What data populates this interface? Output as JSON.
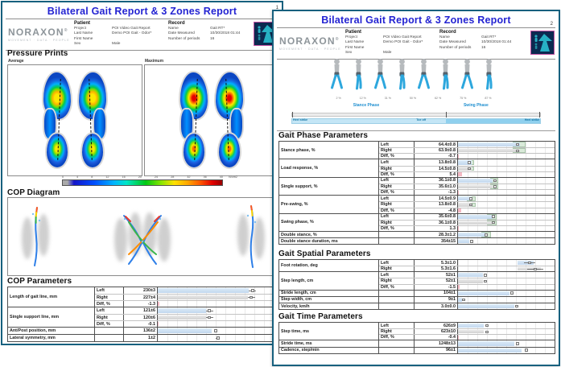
{
  "report": {
    "title": "Bilateral Gait Report & 3 Zones Report"
  },
  "header": {
    "logo_text": "NORAXON",
    "logo_tagline": "MOVEMENT · DATA · PEOPLE",
    "patient_title": "Patient",
    "patient_rows": [
      [
        "Project",
        "POI Video Gait Report"
      ],
      [
        "Last Name",
        "Demo POI Gait - Odor*"
      ],
      [
        "First Name",
        ""
      ],
      [
        "Sex",
        "Male"
      ]
    ],
    "record_title": "Record",
    "record_rows": [
      [
        "Name",
        "Gait RT*"
      ],
      [
        "Date Measured",
        "10/30/2018 01:44"
      ],
      [
        "Number of periods",
        "16"
      ]
    ]
  },
  "page1": {
    "number": "1",
    "pressure": {
      "title": "Pressure Prints",
      "left_label": "Average",
      "right_label": "Maximum",
      "scale_ticks": [
        "0",
        "4",
        "8",
        "12",
        "16",
        "20",
        "24",
        "28",
        "32",
        "36",
        "40"
      ],
      "scale_unit": "N/cm2"
    },
    "cop_diagram_title": "COP Diagram",
    "cop_table": {
      "title": "COP Parameters",
      "groups": [
        {
          "label": "Length of gait line, mm",
          "rows": [
            {
              "side": "Left",
              "value": "230±3",
              "bar": {
                "w": 76,
                "c": "L",
                "m": 79,
                "wh": 3
              }
            },
            {
              "side": "Right",
              "value": "227±4",
              "bar": {
                "w": 75,
                "c": "R",
                "m": 78,
                "wh": 3
              }
            },
            {
              "side": "Diff, %",
              "value": "-1.3",
              "bar": {
                "w": 1.5,
                "c": "D"
              }
            }
          ]
        },
        {
          "label": "Single support line, mm",
          "rows": [
            {
              "side": "Left",
              "value": "121±6",
              "bar": {
                "w": 40,
                "c": "L",
                "m": 43,
                "wh": 3
              }
            },
            {
              "side": "Right",
              "value": "120±6",
              "bar": {
                "w": 40,
                "c": "R",
                "m": 43,
                "wh": 3
              }
            },
            {
              "side": "Diff, %",
              "value": "-0.1",
              "bar": {
                "w": 0.8,
                "c": "D"
              }
            }
          ]
        },
        {
          "label": "Ant/Post position, mm",
          "rows": [
            {
              "side": "",
              "value": "136±2",
              "bar": {
                "w": 45,
                "c": "L",
                "m": 48
              }
            }
          ]
        },
        {
          "label": "Lateral symmetry, mm",
          "rows": [
            {
              "side": "",
              "value": "1±2",
              "bar": {
                "w": 0,
                "c": "N",
                "m": 50,
                "wh": 2
              }
            }
          ]
        }
      ]
    }
  },
  "page2": {
    "number": "2",
    "gait_cycle": {
      "phase_ticks": [
        "2 %",
        "12 %",
        "31 %",
        "50 %",
        "62 %",
        "75 %",
        "87 %"
      ],
      "stance_label": "Stance Phase",
      "swing_label": "Swing Phase",
      "events": [
        "Heel strike",
        "Toe off",
        "Heel strike"
      ]
    },
    "phase_table": {
      "title": "Gait Phase Parameters",
      "groups": [
        {
          "label": "Stance phase, %",
          "rows": [
            {
              "side": "Left",
              "value": "64.4±0.8",
              "bar": {
                "w": 64,
                "c": "L",
                "r": [
                  57,
                  70
                ],
                "m": 62
              }
            },
            {
              "side": "Right",
              "value": "63.9±0.8",
              "bar": {
                "w": 64,
                "c": "R",
                "r": [
                  57,
                  70
                ],
                "m": 62
              }
            },
            {
              "side": "Diff, %",
              "value": "-0.7",
              "bar": {
                "w": 1,
                "c": "D"
              }
            }
          ]
        },
        {
          "label": "Load response, %",
          "rows": [
            {
              "side": "Left",
              "value": "13.8±0.8",
              "bar": {
                "w": 14,
                "c": "L",
                "r": [
                  8,
                  17
                ],
                "m": 12
              }
            },
            {
              "side": "Right",
              "value": "14.5±0.8",
              "bar": {
                "w": 14.5,
                "c": "R",
                "r": [
                  8,
                  17
                ],
                "m": 12
              }
            },
            {
              "side": "Diff, %",
              "value": "5.4",
              "bar": {
                "w": 4,
                "c": "D"
              }
            }
          ]
        },
        {
          "label": "Single support, %",
          "rows": [
            {
              "side": "Left",
              "value": "36.1±0.8",
              "bar": {
                "w": 36,
                "c": "L",
                "r": [
                  33,
                  42
                ],
                "m": 38
              }
            },
            {
              "side": "Right",
              "value": "35.6±1.0",
              "bar": {
                "w": 36,
                "c": "R",
                "r": [
                  33,
                  42
                ],
                "m": 38
              }
            },
            {
              "side": "Diff, %",
              "value": "-1.3",
              "bar": {
                "w": 1.2,
                "c": "D"
              }
            }
          ]
        },
        {
          "label": "Pre-swing, %",
          "rows": [
            {
              "side": "Left",
              "value": "14.5±0.9",
              "bar": {
                "w": 14.5,
                "c": "L",
                "r": [
                  9,
                  18
                ],
                "m": 13
              }
            },
            {
              "side": "Right",
              "value": "13.8±0.8",
              "bar": {
                "w": 14,
                "c": "R",
                "r": [
                  9,
                  18
                ],
                "m": 13
              }
            },
            {
              "side": "Diff, %",
              "value": "-4.8",
              "bar": {
                "w": 3.5,
                "c": "D"
              }
            }
          ]
        },
        {
          "label": "Swing phase, %",
          "rows": [
            {
              "side": "Left",
              "value": "35.6±0.8",
              "bar": {
                "w": 36,
                "c": "L",
                "r": [
                  30,
                  40
                ],
                "m": 37
              }
            },
            {
              "side": "Right",
              "value": "36.1±0.8",
              "bar": {
                "w": 36,
                "c": "R",
                "r": [
                  30,
                  40
                ],
                "m": 37
              }
            },
            {
              "side": "Diff, %",
              "value": "1.3",
              "bar": {
                "w": 1.2,
                "c": "D"
              }
            }
          ]
        },
        {
          "label": "Double stance, %",
          "rows": [
            {
              "side": "",
              "value": "28.3±1.2",
              "bar": {
                "w": 28,
                "c": "L",
                "r": [
                  24,
                  34
                ],
                "m": 29
              }
            }
          ]
        },
        {
          "label": "Double stance duration, ms",
          "rows": [
            {
              "side": "",
              "value": "354±15",
              "bar": {
                "w": 12,
                "c": "L",
                "m": 14
              }
            }
          ]
        }
      ]
    },
    "spatial_table": {
      "title": "Gait Spatial Parameters",
      "groups": [
        {
          "label": "Foot rotation, deg",
          "rows": [
            {
              "side": "Left",
              "value": "5.3±1.0",
              "bar": {
                "s": 62,
                "w": 16,
                "c": "L",
                "m": 74,
                "wh": 6
              }
            },
            {
              "side": "Right",
              "value": "5.3±1.6",
              "bar": {
                "s": 62,
                "w": 24,
                "c": "R",
                "m": 80,
                "wh": 8
              }
            }
          ]
        },
        {
          "label": "Step length, cm",
          "rows": [
            {
              "side": "Left",
              "value": "52±1",
              "bar": {
                "w": 26,
                "c": "L",
                "m": 28
              }
            },
            {
              "side": "Right",
              "value": "52±1",
              "bar": {
                "w": 26,
                "c": "R",
                "m": 28
              }
            },
            {
              "side": "Diff, %",
              "value": "-1.5",
              "bar": {
                "w": 1.5,
                "c": "D"
              }
            }
          ]
        },
        {
          "label": "Stride length, cm",
          "rows": [
            {
              "side": "",
              "value": "104±1",
              "bar": {
                "w": 53,
                "c": "L",
                "m": 56
              }
            }
          ]
        },
        {
          "label": "Step width, cm",
          "rows": [
            {
              "side": "",
              "value": "9±1",
              "bar": {
                "w": 4,
                "c": "L",
                "m": 6
              }
            }
          ]
        },
        {
          "label": "Velocity, km/h",
          "rows": [
            {
              "side": "",
              "value": "3.0±0.0",
              "bar": {
                "w": 58,
                "c": "L",
                "m": 61
              }
            }
          ]
        }
      ]
    },
    "time_table": {
      "title": "Gait Time Parameters",
      "groups": [
        {
          "label": "Step time, ms",
          "rows": [
            {
              "side": "Left",
              "value": "626±9",
              "bar": {
                "w": 27,
                "c": "L",
                "m": 30
              }
            },
            {
              "side": "Right",
              "value": "623±10",
              "bar": {
                "w": 27,
                "c": "R",
                "m": 30
              }
            },
            {
              "side": "Diff, %",
              "value": "-0.4",
              "bar": {
                "w": 1,
                "c": "D"
              }
            }
          ]
        },
        {
          "label": "Stride time, ms",
          "rows": [
            {
              "side": "",
              "value": "1248±13",
              "bar": {
                "w": 58,
                "c": "L",
                "m": 62
              }
            }
          ]
        },
        {
          "label": "Cadence, step/min",
          "rows": [
            {
              "side": "",
              "value": "96±1",
              "bar": {
                "w": 66,
                "c": "L",
                "m": 71
              }
            }
          ]
        }
      ]
    }
  }
}
